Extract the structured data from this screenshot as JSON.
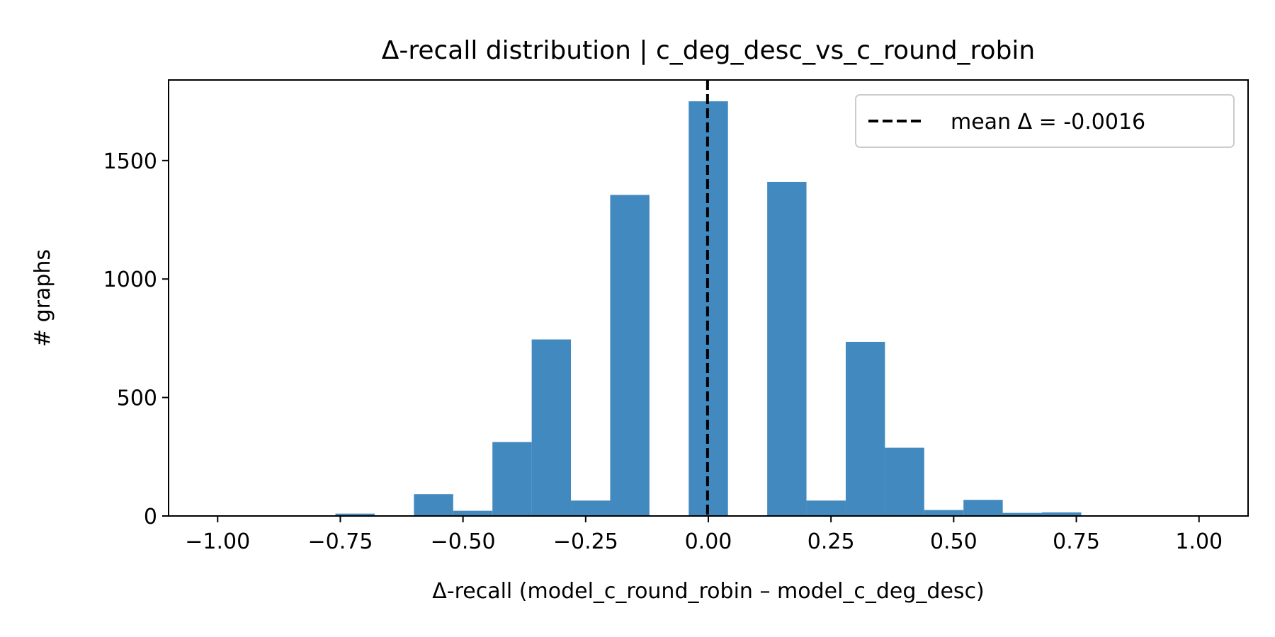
{
  "chart_data": {
    "type": "bar",
    "title": "Δ-recall distribution  |  c_deg_desc_vs_c_round_robin",
    "xlabel": "Δ-recall  (model_c_round_robin – model_c_deg_desc)",
    "ylabel": "# graphs",
    "xlim": [
      -1.1,
      1.1
    ],
    "ylim": [
      0,
      1840
    ],
    "x_ticks": [
      -1.0,
      -0.75,
      -0.5,
      -0.25,
      0.0,
      0.25,
      0.5,
      0.75,
      1.0
    ],
    "x_tick_labels": [
      "−1.00",
      "−0.75",
      "−0.50",
      "−0.25",
      "0.00",
      "0.25",
      "0.50",
      "0.75",
      "1.00"
    ],
    "y_ticks": [
      0,
      500,
      1000,
      1500
    ],
    "y_tick_labels": [
      "0",
      "500",
      "1000",
      "1500"
    ],
    "bin_edges": [
      -1.0,
      -0.92,
      -0.84,
      -0.76,
      -0.68,
      -0.6,
      -0.52,
      -0.44,
      -0.36,
      -0.28,
      -0.2,
      -0.12,
      -0.04,
      0.04,
      0.12,
      0.2,
      0.28,
      0.36,
      0.44,
      0.52,
      0.6,
      0.68,
      0.76,
      0.84,
      0.92,
      1.0
    ],
    "counts": [
      0,
      3,
      0,
      10,
      3,
      92,
      22,
      312,
      745,
      65,
      1355,
      0,
      1750,
      0,
      1410,
      65,
      735,
      288,
      25,
      68,
      13,
      15,
      0,
      0,
      0
    ],
    "bar_color": "#4289bf",
    "mean_line": {
      "value": -0.0016,
      "label": "mean Δ = -0.0016",
      "style": "dashed",
      "color": "#000000"
    },
    "legend_position": "top-right",
    "grid": false
  }
}
